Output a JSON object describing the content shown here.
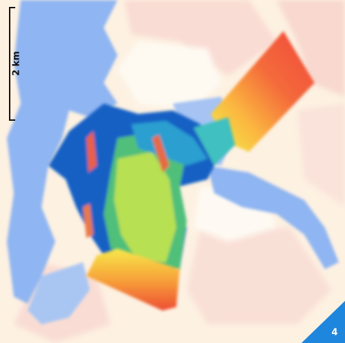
{
  "scale_bar": {
    "label": "2 km"
  },
  "corner_label": "4"
}
